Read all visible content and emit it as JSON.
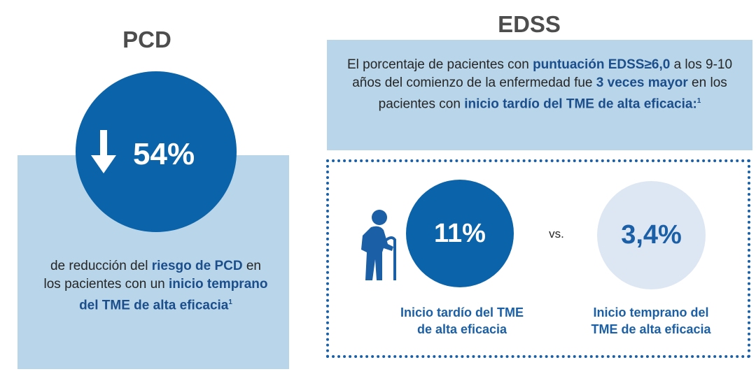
{
  "colors": {
    "primary_blue": "#0b63a9",
    "light_panel": "#b8d5ea",
    "pale_circle": "#dde7f3",
    "highlight_text": "#1b4e8a"
  },
  "pcd": {
    "title": "PCD",
    "arrow_icon": "arrow-down-icon",
    "percent": "54%",
    "text": {
      "p1": "de reducción del ",
      "h1": "riesgo de PCD",
      "p2": " en  los pacientes con un ",
      "h2": "inicio temprano del TME de alta eficacia",
      "ref": "1"
    }
  },
  "edss": {
    "title": "EDSS",
    "summary": {
      "p1": "El porcentaje de pacientes con ",
      "h1": "puntuación EDSS≥6,0",
      "p2": " a los 9-10 años del comienzo de la enfermedad fue ",
      "h2": "3 veces mayor",
      "p3": " en los pacientes con ",
      "h3": "inicio tardío del TME de alta eficacia",
      "h3_suffix": ":",
      "ref": "1"
    },
    "elder_icon": "elderly-person-icon",
    "late": {
      "value": "11%",
      "caption_line1": "Inicio tardío del TME",
      "caption_line2": "de alta eficacia"
    },
    "vs_label": "vs.",
    "early": {
      "value": "3,4%",
      "caption_line1": "Inicio temprano del",
      "caption_line2": "TME de alta eficacia"
    }
  }
}
